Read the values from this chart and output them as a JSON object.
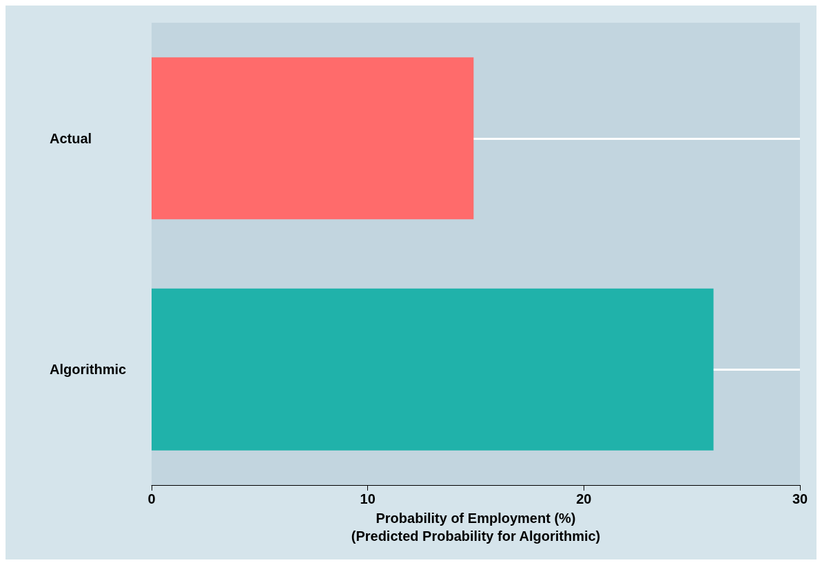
{
  "chart_data": {
    "type": "bar",
    "orientation": "horizontal",
    "categories": [
      "Actual",
      "Algorithmic"
    ],
    "values": [
      14.9,
      26.0
    ],
    "colors": [
      "#ff6b6b",
      "#20b2aa"
    ],
    "xlim": [
      0,
      30
    ],
    "xticks": [
      0,
      10,
      20,
      30
    ],
    "xlabel": "Probability of Employment (%)\n(Predicted Probability for Algorithmic)",
    "grid": "y"
  }
}
